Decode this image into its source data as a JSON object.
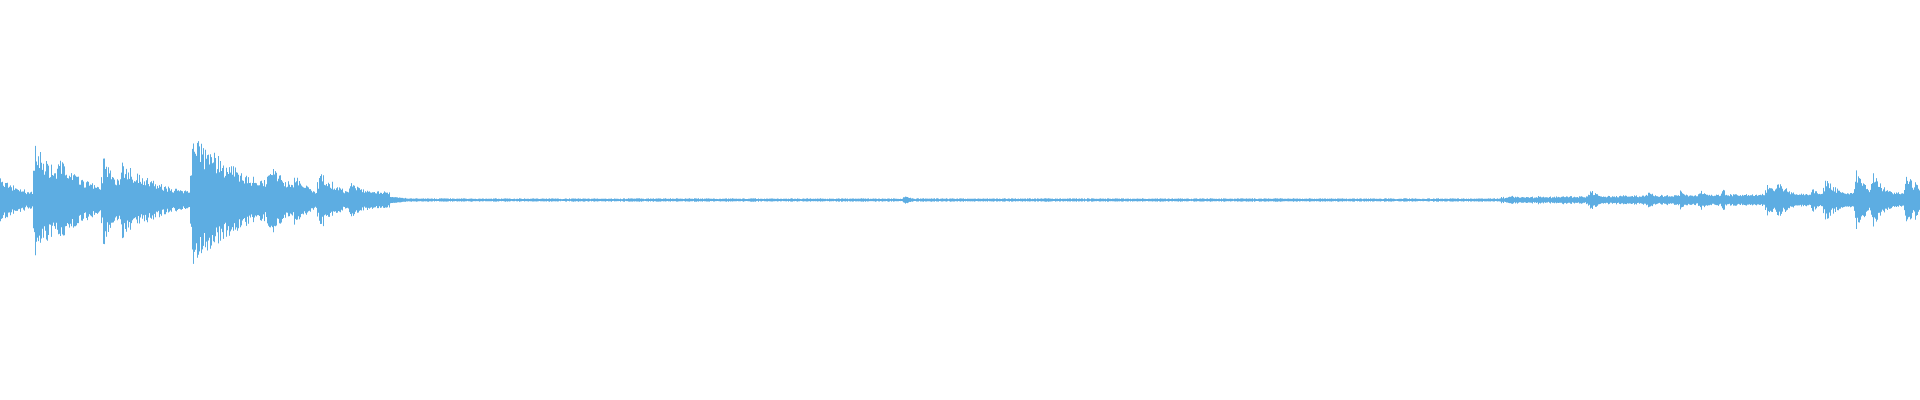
{
  "chart_data": {
    "type": "waveform",
    "title": "",
    "xlabel": "",
    "ylabel": "",
    "axes_visible": false,
    "grid": false,
    "legend": "none",
    "channels": 1,
    "amplitude_range": [
      -1,
      1
    ]
  },
  "colors": {
    "waveform": "#5dade2",
    "background": "#ffffff"
  }
}
